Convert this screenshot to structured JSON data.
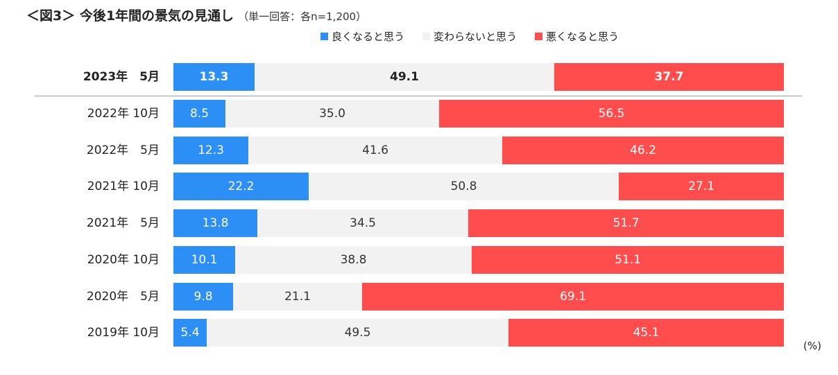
{
  "title": {
    "main": "＜図3＞ 今後1年間の景気の見通し",
    "sub": "（単一回答：各n=1,200）"
  },
  "unit_label": "(%)",
  "chart_data": {
    "type": "stacked-bar-horizontal",
    "title": "＜図3＞ 今後1年間の景気の見通し",
    "subtitle": "（単一回答：各n=1,200）",
    "unit": "%",
    "categories": [
      "2023年　5月",
      "2022年 10月",
      "2022年　5月",
      "2021年 10月",
      "2021年　5月",
      "2020年 10月",
      "2020年　5月",
      "2019年 10月"
    ],
    "highlight_category": "2023年　5月",
    "series": [
      {
        "name": "良くなると思う",
        "color": "#2b8ff5",
        "label_color": "#ffffff",
        "values": [
          13.3,
          8.5,
          12.3,
          22.2,
          13.8,
          10.1,
          9.8,
          5.4
        ]
      },
      {
        "name": "変わらないと思う",
        "color": "#f2f2f2",
        "label_color": "#333333",
        "values": [
          49.1,
          35.0,
          41.6,
          50.8,
          34.5,
          38.8,
          21.1,
          49.5
        ]
      },
      {
        "name": "悪くなると思う",
        "color": "#ff4d4d",
        "label_color": "#ffffff",
        "values": [
          37.7,
          56.5,
          46.2,
          27.1,
          51.7,
          51.1,
          69.1,
          45.1
        ]
      }
    ],
    "xlim": [
      0,
      100
    ]
  }
}
